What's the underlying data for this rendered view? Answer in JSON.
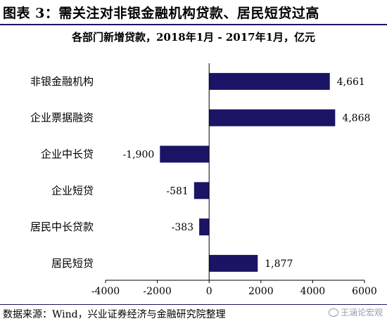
{
  "title": "图表 3：需关注对非银金融机构贷款、居民短贷过高",
  "subtitle": "各部门新增贷款，2018年1月 - 2017年1月，亿元",
  "source": "数据来源：Wind，兴业证券经济与金融研究院整理",
  "watermark": "王涵论宏观",
  "colors": {
    "bar": "#1b1464",
    "rule": "#1b1464"
  },
  "chart_data": {
    "type": "bar",
    "orientation": "horizontal",
    "categories": [
      "非银金融机构",
      "企业票据融资",
      "企业中长贷",
      "企业短贷",
      "居民中长贷款",
      "居民短贷"
    ],
    "values": [
      4661,
      4868,
      -1900,
      -581,
      -383,
      1877
    ],
    "value_labels": [
      "4,661",
      "4,868",
      "-1,900",
      "-581",
      "-383",
      "1,877"
    ],
    "x_ticks": [
      -4000,
      -2000,
      0,
      2000,
      4000,
      6000
    ],
    "x_tick_labels": [
      "-4000",
      "-2000",
      "0",
      "2000",
      "4000",
      "6000"
    ],
    "xlim": [
      -4000,
      6000
    ],
    "grid": false,
    "legend": "none"
  }
}
